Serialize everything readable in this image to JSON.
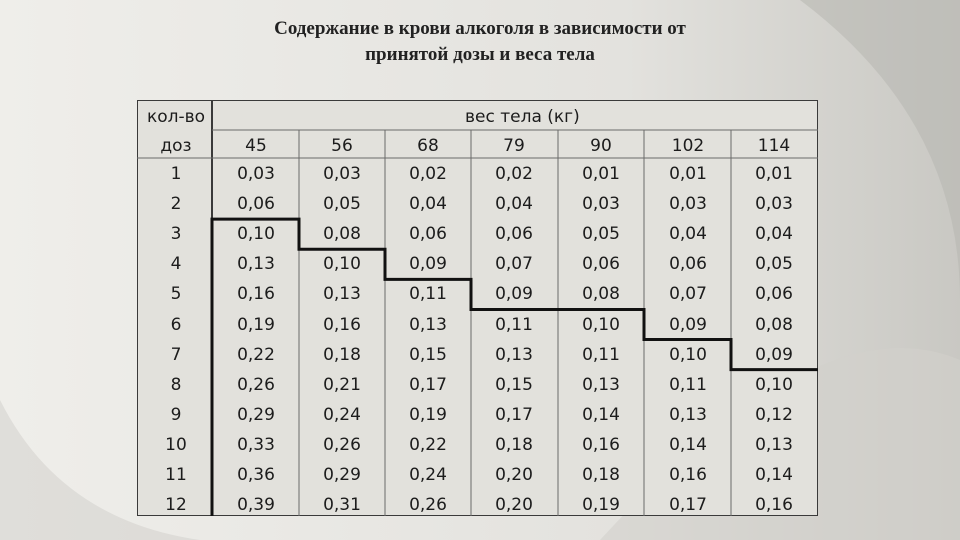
{
  "slide": {
    "title_line1": "Содержание в крови  алкоголя в зависимости от",
    "title_line2": "принятой дозы  и веса тела"
  },
  "table": {
    "header": {
      "dose_label_top": "кол-во",
      "dose_label_bottom": "доз",
      "weight_label": "вес тела (кг)"
    },
    "weights": [
      "45",
      "56",
      "68",
      "79",
      "90",
      "102",
      "114"
    ],
    "rows": [
      {
        "dose": "1",
        "values": [
          "0,03",
          "0,03",
          "0,02",
          "0,02",
          "0,01",
          "0,01",
          "0,01"
        ]
      },
      {
        "dose": "2",
        "values": [
          "0,06",
          "0,05",
          "0,04",
          "0,04",
          "0,03",
          "0,03",
          "0,03"
        ]
      },
      {
        "dose": "3",
        "values": [
          "0,10",
          "0,08",
          "0,06",
          "0,06",
          "0,05",
          "0,04",
          "0,04"
        ]
      },
      {
        "dose": "4",
        "values": [
          "0,13",
          "0,10",
          "0,09",
          "0,07",
          "0,06",
          "0,06",
          "0,05"
        ]
      },
      {
        "dose": "5",
        "values": [
          "0,16",
          "0,13",
          "0,11",
          "0,09",
          "0,08",
          "0,07",
          "0,06"
        ]
      },
      {
        "dose": "6",
        "values": [
          "0,19",
          "0,16",
          "0,13",
          "0,11",
          "0,10",
          "0,09",
          "0,08"
        ]
      },
      {
        "dose": "7",
        "values": [
          "0,22",
          "0,18",
          "0,15",
          "0,13",
          "0,11",
          "0,10",
          "0,09"
        ]
      },
      {
        "dose": "8",
        "values": [
          "0,26",
          "0,21",
          "0,17",
          "0,15",
          "0,13",
          "0,11",
          "0,10"
        ]
      },
      {
        "dose": "9",
        "values": [
          "0,29",
          "0,24",
          "0,19",
          "0,17",
          "0,14",
          "0,13",
          "0,12"
        ]
      },
      {
        "dose": "10",
        "values": [
          "0,33",
          "0,26",
          "0,22",
          "0,18",
          "0,16",
          "0,14",
          "0,13"
        ]
      },
      {
        "dose": "11",
        "values": [
          "0,36",
          "0,29",
          "0,24",
          "0,20",
          "0,18",
          "0,16",
          "0,14"
        ]
      },
      {
        "dose": "12",
        "values": [
          "0,39",
          "0,31",
          "0,26",
          "0,20",
          "0,19",
          "0,17",
          "0,16"
        ]
      }
    ],
    "threshold_start_rows": [
      3,
      4,
      5,
      6,
      6,
      7,
      8
    ]
  }
}
